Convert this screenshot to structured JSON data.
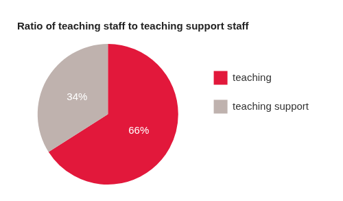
{
  "chart_data": {
    "type": "pie",
    "title": "Ratio of teaching staff to teaching support staff",
    "categories": [
      "teaching",
      "teaching support"
    ],
    "values": [
      66,
      34
    ],
    "value_labels": [
      "66%",
      "34%"
    ],
    "colors": [
      "#e2183b",
      "#bfb2ae"
    ],
    "data_labels": true,
    "legend": "right"
  }
}
